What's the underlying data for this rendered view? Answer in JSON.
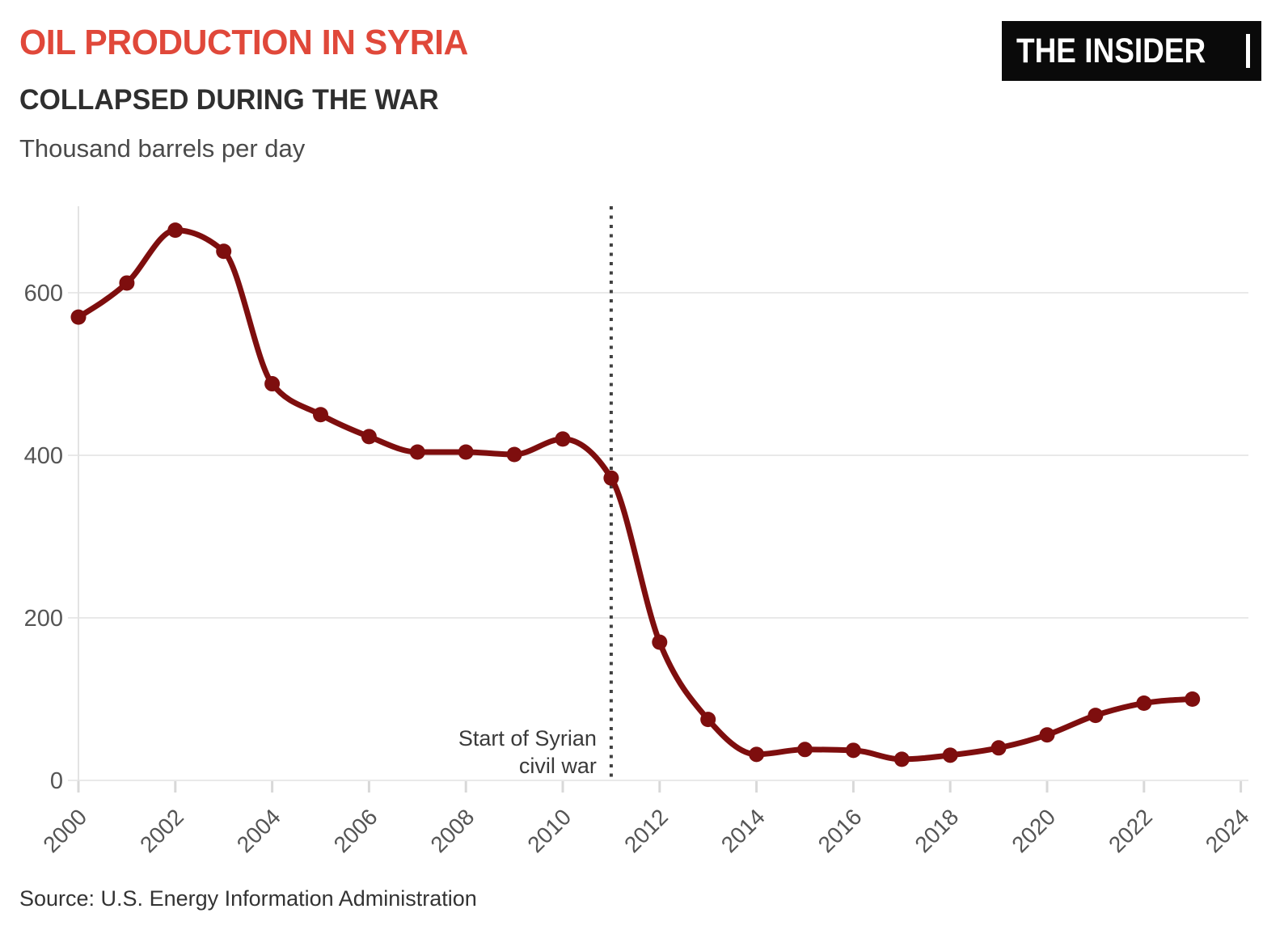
{
  "header": {
    "title": "OIL PRODUCTION IN SYRIA",
    "subtitle": "COLLAPSED DURING THE WAR",
    "unit_label": "Thousand barrels per day"
  },
  "logo": {
    "text": "THE INSIDER"
  },
  "source": {
    "text": "Source: U.S. Energy Information Administration"
  },
  "colors": {
    "title_red": "#E0483A",
    "line_maroon": "#7E0E0E",
    "logo_black": "#0a0a0a",
    "axis_label_gray": "#555555",
    "gridline_gray": "#E9E9E9",
    "tick_gray": "#D8D8D8",
    "annotation_gray": "#3A3A3A",
    "vline_gray": "#404040"
  },
  "chart_data": {
    "type": "line",
    "title": "Oil production in Syria collapsed during the war",
    "xlabel": "",
    "ylabel": "Thousand barrels per day",
    "x": [
      2000,
      2001,
      2002,
      2003,
      2004,
      2005,
      2006,
      2007,
      2008,
      2009,
      2010,
      2011,
      2012,
      2013,
      2014,
      2015,
      2016,
      2017,
      2018,
      2019,
      2020,
      2021,
      2022,
      2023
    ],
    "values": [
      570,
      612,
      677,
      651,
      488,
      450,
      423,
      404,
      404,
      401,
      420,
      372,
      170,
      75,
      32,
      38,
      37,
      26,
      31,
      40,
      56,
      80,
      95,
      100
    ],
    "x_ticks": [
      2000,
      2002,
      2004,
      2006,
      2008,
      2010,
      2012,
      2014,
      2016,
      2018,
      2020,
      2022,
      2024
    ],
    "y_ticks": [
      0,
      200,
      400,
      600
    ],
    "xlim": [
      2000,
      2024
    ],
    "ylim": [
      0,
      700
    ],
    "grid": "horizontal",
    "legend": "none",
    "marker": "circle",
    "vline": {
      "x": 2011,
      "style": "dotted",
      "label_lines": [
        "Start of Syrian",
        "civil war"
      ]
    }
  }
}
